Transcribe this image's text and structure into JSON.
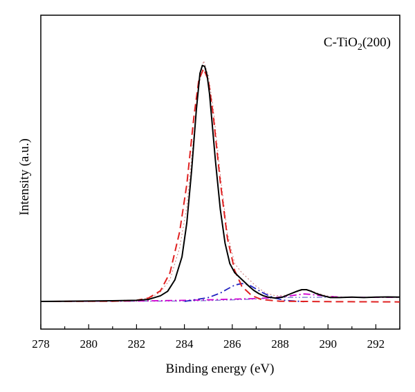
{
  "chart_data": {
    "type": "line",
    "annotation": {
      "prefix": "C-TiO",
      "subscript": "2",
      "suffix": "(200)"
    },
    "xlabel": "Binding energy (eV)",
    "ylabel": "Intensity (a.u.)",
    "xlim": [
      278,
      293
    ],
    "ylim": [
      0,
      1.12
    ],
    "x_ticks": [
      278,
      280,
      282,
      284,
      286,
      288,
      290,
      292
    ],
    "x_minor_step": 1,
    "y_ticks_labeled": false,
    "grid": false,
    "series": [
      {
        "style": "raw-solid",
        "color": "#000000",
        "x": [
          278.0,
          279.0,
          280.0,
          281.0,
          282.0,
          282.5,
          283.0,
          283.3,
          283.6,
          283.9,
          284.1,
          284.3,
          284.5,
          284.65,
          284.75,
          284.85,
          284.95,
          285.05,
          285.15,
          285.3,
          285.5,
          285.7,
          285.9,
          286.1,
          286.3,
          286.5,
          286.7,
          286.9,
          287.1,
          287.3,
          287.5,
          287.8,
          288.1,
          288.4,
          288.7,
          288.9,
          289.1,
          289.3,
          289.5,
          289.8,
          290.1,
          290.5,
          291.0,
          291.5,
          292.0,
          292.5,
          293.0
        ],
        "y": [
          0.003,
          0.004,
          0.005,
          0.006,
          0.008,
          0.012,
          0.028,
          0.048,
          0.098,
          0.2,
          0.35,
          0.58,
          0.85,
          1.01,
          1.045,
          1.04,
          1.0,
          0.92,
          0.8,
          0.62,
          0.41,
          0.26,
          0.17,
          0.13,
          0.11,
          0.09,
          0.07,
          0.052,
          0.038,
          0.028,
          0.022,
          0.018,
          0.022,
          0.035,
          0.048,
          0.055,
          0.055,
          0.048,
          0.038,
          0.028,
          0.02,
          0.02,
          0.022,
          0.02,
          0.022,
          0.023,
          0.022
        ]
      },
      {
        "style": "fit-dotted",
        "color": "#d08a8a",
        "x": [
          278.0,
          280.0,
          282.0,
          282.6,
          283.0,
          283.4,
          283.8,
          284.1,
          284.4,
          284.6,
          284.8,
          285.0,
          285.2,
          285.5,
          285.8,
          286.1,
          286.4,
          286.7,
          287.0,
          287.4,
          287.8,
          288.2,
          288.6,
          288.9,
          289.1,
          289.3,
          289.6,
          290.0,
          290.5,
          291.0,
          292.0,
          293.0
        ],
        "y": [
          0.004,
          0.005,
          0.009,
          0.02,
          0.045,
          0.1,
          0.24,
          0.42,
          0.74,
          0.95,
          1.065,
          1.0,
          0.86,
          0.56,
          0.3,
          0.17,
          0.13,
          0.1,
          0.07,
          0.04,
          0.028,
          0.03,
          0.042,
          0.052,
          0.055,
          0.05,
          0.038,
          0.026,
          0.022,
          0.021,
          0.021,
          0.021
        ]
      },
      {
        "style": "peak-red-dash",
        "color": "#e02020",
        "x": [
          278.0,
          281.0,
          282.0,
          282.5,
          283.0,
          283.4,
          283.8,
          284.1,
          284.4,
          284.6,
          284.8,
          285.0,
          285.2,
          285.5,
          285.8,
          286.1,
          286.4,
          286.8,
          287.2,
          288.0,
          290.0,
          293.0
        ],
        "y": [
          0.003,
          0.004,
          0.008,
          0.018,
          0.05,
          0.13,
          0.31,
          0.52,
          0.82,
          0.98,
          1.03,
          0.98,
          0.83,
          0.53,
          0.28,
          0.14,
          0.07,
          0.03,
          0.012,
          0.004,
          0.002,
          0.001
        ]
      },
      {
        "style": "peak-blue-dashdot",
        "color": "#2020c0",
        "x": [
          284.0,
          285.0,
          285.5,
          285.8,
          286.1,
          286.4,
          286.7,
          287.0,
          287.3,
          287.7,
          288.2,
          289.0
        ],
        "y": [
          0.003,
          0.02,
          0.04,
          0.058,
          0.075,
          0.082,
          0.076,
          0.058,
          0.04,
          0.02,
          0.008,
          0.002
        ]
      },
      {
        "style": "peak-magenta-dashdot",
        "color": "#d000d0",
        "x": [
          278.0,
          282.0,
          284.0,
          285.0,
          286.0,
          287.0,
          287.8,
          288.3,
          288.7,
          289.0,
          289.3,
          289.6,
          290.0,
          290.5,
          291.0,
          292.0,
          293.0
        ],
        "y": [
          0.003,
          0.005,
          0.008,
          0.01,
          0.013,
          0.016,
          0.02,
          0.026,
          0.032,
          0.036,
          0.034,
          0.03,
          0.026,
          0.022,
          0.021,
          0.021,
          0.021
        ]
      },
      {
        "style": "baseline-dashdotdot",
        "color": "#7a7ad0",
        "x": [
          278.0,
          284.0,
          285.0,
          286.0,
          287.0,
          287.6,
          288.0,
          289.0,
          290.0,
          291.0,
          292.0,
          293.0
        ],
        "y": [
          0.003,
          0.005,
          0.007,
          0.01,
          0.014,
          0.018,
          0.02,
          0.021,
          0.021,
          0.021,
          0.021,
          0.021
        ]
      }
    ]
  }
}
